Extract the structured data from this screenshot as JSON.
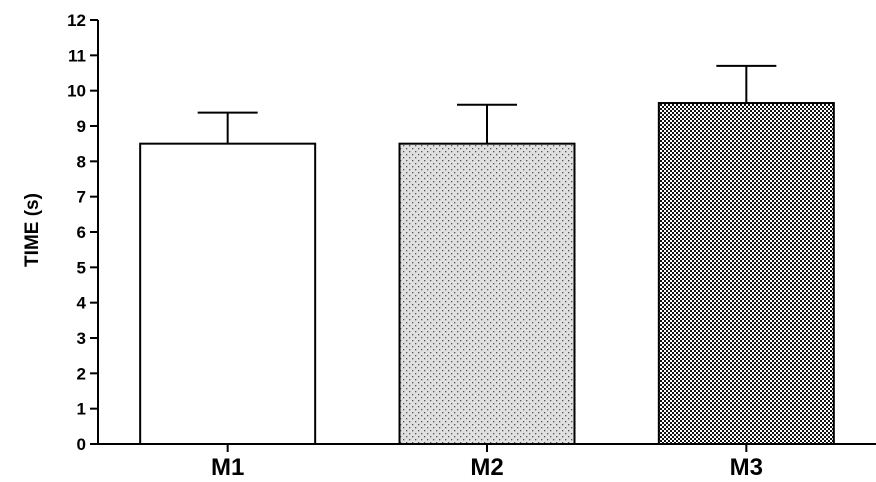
{
  "chart_data": {
    "type": "bar",
    "title": "",
    "xlabel": "",
    "ylabel": "TIME (s)",
    "categories": [
      "M1",
      "M2",
      "M3"
    ],
    "values": [
      8.5,
      8.5,
      9.65
    ],
    "error_upper": [
      9.38,
      9.6,
      10.7
    ],
    "ylim": [
      0,
      12
    ],
    "yticks": [
      0,
      1,
      2,
      3,
      4,
      5,
      6,
      7,
      8,
      9,
      10,
      11,
      12
    ],
    "ytick_labels": [
      "0",
      "1",
      "2",
      "3",
      "4",
      "5",
      "6",
      "7",
      "8",
      "9",
      "10",
      "11",
      "12"
    ],
    "fills": [
      "white",
      "fine-dot",
      "checker"
    ],
    "grid": false,
    "legend": "none"
  }
}
